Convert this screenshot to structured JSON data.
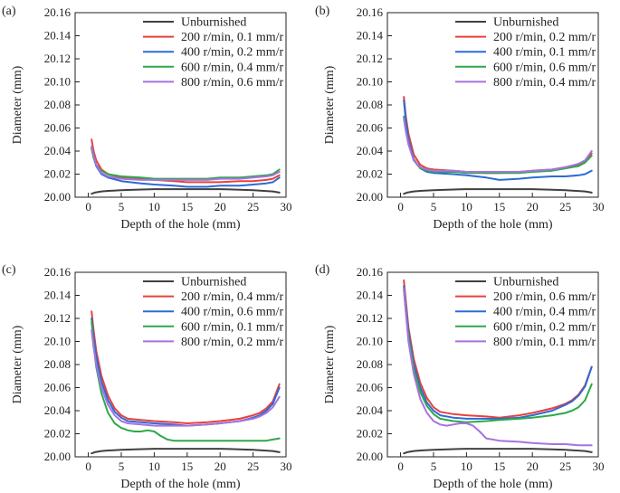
{
  "chart_data": [
    {
      "panel_label": "(a)",
      "type": "line",
      "xlabel": "Depth of the hole (mm)",
      "ylabel": "Diameter (mm)",
      "xlim": [
        -2,
        30
      ],
      "ylim": [
        20.0,
        20.16
      ],
      "xticks": [
        "0",
        "5",
        "10",
        "15",
        "20",
        "25",
        "30"
      ],
      "yticks": [
        "20.00",
        "20.02",
        "20.04",
        "20.06",
        "20.08",
        "20.10",
        "20.12",
        "20.14",
        "20.16"
      ],
      "legend_position": "top-right",
      "series": [
        {
          "name": "Unburnished",
          "color": "#404040",
          "x": [
            0.5,
            1,
            2,
            3,
            5,
            7,
            10,
            13,
            15,
            18,
            20,
            23,
            25,
            28,
            29
          ],
          "y": [
            20.003,
            20.004,
            20.005,
            20.0055,
            20.006,
            20.0065,
            20.007,
            20.007,
            20.007,
            20.007,
            20.007,
            20.0065,
            20.006,
            20.005,
            20.004
          ]
        },
        {
          "name": "200 r/min, 0.1 mm/r",
          "color": "#e8413a",
          "x": [
            0.5,
            0.8,
            1.2,
            2,
            3,
            5,
            8,
            10,
            13,
            15,
            18,
            20,
            23,
            25,
            27,
            28,
            29
          ],
          "y": [
            20.05,
            20.04,
            20.032,
            20.024,
            20.02,
            20.017,
            20.016,
            20.015,
            20.014,
            20.013,
            20.013,
            20.013,
            20.014,
            20.014,
            20.015,
            20.016,
            20.019
          ]
        },
        {
          "name": "400 r/min, 0.2 mm/r",
          "color": "#2b6bd6",
          "x": [
            0.5,
            0.8,
            1.2,
            2,
            3,
            5,
            8,
            10,
            13,
            15,
            18,
            20,
            23,
            25,
            27,
            28,
            29
          ],
          "y": [
            20.043,
            20.035,
            20.027,
            20.02,
            20.017,
            20.014,
            20.012,
            20.011,
            20.01,
            20.009,
            20.009,
            20.01,
            20.01,
            20.011,
            20.012,
            20.013,
            20.017
          ]
        },
        {
          "name": "600 r/min, 0.4 mm/r",
          "color": "#2ea84a",
          "x": [
            0.5,
            0.8,
            1.2,
            2,
            3,
            5,
            8,
            10,
            13,
            15,
            18,
            20,
            23,
            25,
            27,
            28,
            29
          ],
          "y": [
            20.042,
            20.034,
            20.028,
            20.023,
            20.02,
            20.018,
            20.017,
            20.016,
            20.016,
            20.016,
            20.016,
            20.017,
            20.017,
            20.018,
            20.019,
            20.02,
            20.024
          ]
        },
        {
          "name": "800 r/min, 0.6 mm/r",
          "color": "#a772e0",
          "x": [
            0.5,
            0.8,
            1.2,
            2,
            3,
            5,
            8,
            10,
            13,
            15,
            18,
            20,
            23,
            25,
            27,
            28,
            29
          ],
          "y": [
            20.044,
            20.036,
            20.028,
            20.021,
            20.018,
            20.016,
            20.015,
            20.015,
            20.015,
            20.015,
            20.015,
            20.016,
            20.016,
            20.017,
            20.018,
            20.019,
            20.022
          ]
        }
      ]
    },
    {
      "panel_label": "(b)",
      "type": "line",
      "xlabel": "Depth of the hole (mm)",
      "ylabel": "Diameter (mm)",
      "xlim": [
        -2,
        30
      ],
      "ylim": [
        20.0,
        20.16
      ],
      "xticks": [
        "0",
        "5",
        "10",
        "15",
        "20",
        "25",
        "30"
      ],
      "yticks": [
        "20.00",
        "20.02",
        "20.04",
        "20.06",
        "20.08",
        "20.10",
        "20.12",
        "20.14",
        "20.16"
      ],
      "legend_position": "top-right",
      "series": [
        {
          "name": "Unburnished",
          "color": "#404040",
          "x": [
            0.5,
            1,
            2,
            3,
            5,
            7,
            10,
            13,
            15,
            18,
            20,
            23,
            25,
            28,
            29
          ],
          "y": [
            20.003,
            20.004,
            20.005,
            20.0055,
            20.006,
            20.0065,
            20.007,
            20.007,
            20.007,
            20.007,
            20.007,
            20.0065,
            20.006,
            20.005,
            20.004
          ]
        },
        {
          "name": "200 r/min, 0.2 mm/r",
          "color": "#e8413a",
          "x": [
            0.5,
            0.8,
            1.2,
            2,
            3,
            4,
            5,
            8,
            10,
            13,
            15,
            18,
            20,
            23,
            25,
            27,
            28,
            29
          ],
          "y": [
            20.087,
            20.07,
            20.055,
            20.037,
            20.028,
            20.025,
            20.024,
            20.023,
            20.022,
            20.021,
            20.021,
            20.022,
            20.023,
            20.024,
            20.026,
            20.028,
            20.031,
            20.038
          ]
        },
        {
          "name": "400 r/min, 0.1 mm/r",
          "color": "#2b6bd6",
          "x": [
            0.5,
            0.8,
            1.2,
            2,
            3,
            4,
            5,
            8,
            10,
            13,
            15,
            18,
            20,
            23,
            25,
            27,
            28,
            29
          ],
          "y": [
            20.084,
            20.066,
            20.05,
            20.033,
            20.025,
            20.022,
            20.021,
            20.02,
            20.019,
            20.017,
            20.015,
            20.016,
            20.017,
            20.018,
            20.018,
            20.019,
            20.02,
            20.023
          ]
        },
        {
          "name": "600 r/min, 0.6 mm/r",
          "color": "#2ea84a",
          "x": [
            0.5,
            0.8,
            1.2,
            2,
            3,
            4,
            5,
            8,
            10,
            13,
            15,
            18,
            20,
            23,
            25,
            27,
            28,
            29
          ],
          "y": [
            20.07,
            20.058,
            20.046,
            20.032,
            20.025,
            20.023,
            20.022,
            20.022,
            20.021,
            20.021,
            20.021,
            20.021,
            20.022,
            20.023,
            20.025,
            20.027,
            20.03,
            20.036
          ]
        },
        {
          "name": "800 r/min, 0.4 mm/r",
          "color": "#a772e0",
          "x": [
            0.5,
            0.8,
            1.2,
            2,
            3,
            4,
            5,
            8,
            10,
            13,
            15,
            18,
            20,
            23,
            25,
            27,
            28,
            29
          ],
          "y": [
            20.068,
            20.057,
            20.046,
            20.032,
            20.026,
            20.024,
            20.023,
            20.023,
            20.022,
            20.022,
            20.022,
            20.022,
            20.023,
            20.024,
            20.026,
            20.029,
            20.032,
            20.04
          ]
        }
      ]
    },
    {
      "panel_label": "(c)",
      "type": "line",
      "xlabel": "Depth of the hole (mm)",
      "ylabel": "Diameter (mm)",
      "xlim": [
        -2,
        30
      ],
      "ylim": [
        20.0,
        20.16
      ],
      "xticks": [
        "0",
        "5",
        "10",
        "15",
        "20",
        "25",
        "30"
      ],
      "yticks": [
        "20.00",
        "20.02",
        "20.04",
        "20.06",
        "20.08",
        "20.10",
        "20.12",
        "20.14",
        "20.16"
      ],
      "legend_position": "top-right",
      "series": [
        {
          "name": "Unburnished",
          "color": "#404040",
          "x": [
            0.5,
            1,
            2,
            3,
            5,
            7,
            10,
            13,
            15,
            18,
            20,
            23,
            25,
            28,
            29
          ],
          "y": [
            20.003,
            20.004,
            20.005,
            20.0055,
            20.006,
            20.0065,
            20.007,
            20.007,
            20.007,
            20.007,
            20.007,
            20.0065,
            20.006,
            20.005,
            20.004
          ]
        },
        {
          "name": "200 r/min, 0.4 mm/r",
          "color": "#e8413a",
          "x": [
            0.5,
            0.8,
            1.2,
            2,
            3,
            4,
            5,
            6,
            8,
            10,
            13,
            15,
            18,
            20,
            23,
            25,
            26,
            27,
            28,
            29
          ],
          "y": [
            20.126,
            20.11,
            20.092,
            20.07,
            20.053,
            20.042,
            20.036,
            20.033,
            20.032,
            20.031,
            20.03,
            20.029,
            20.03,
            20.031,
            20.033,
            20.036,
            20.038,
            20.042,
            20.048,
            20.063
          ]
        },
        {
          "name": "400 r/min, 0.6 mm/r",
          "color": "#2b6bd6",
          "x": [
            0.5,
            0.8,
            1.2,
            2,
            3,
            4,
            5,
            6,
            8,
            10,
            13,
            15,
            18,
            20,
            23,
            25,
            26,
            27,
            28,
            29
          ],
          "y": [
            20.12,
            20.104,
            20.087,
            20.065,
            20.049,
            20.039,
            20.034,
            20.031,
            20.03,
            20.029,
            20.028,
            20.027,
            20.028,
            20.029,
            20.031,
            20.034,
            20.036,
            20.04,
            20.046,
            20.06
          ]
        },
        {
          "name": "600 r/min, 0.1 mm/r",
          "color": "#2ea84a",
          "x": [
            0.5,
            0.8,
            1.2,
            2,
            3,
            4,
            5,
            6,
            7,
            8,
            9,
            10,
            11,
            12,
            13,
            15,
            18,
            20,
            23,
            25,
            27,
            28,
            29
          ],
          "y": [
            20.117,
            20.098,
            20.078,
            20.055,
            20.038,
            20.029,
            20.025,
            20.023,
            20.022,
            20.022,
            20.023,
            20.022,
            20.018,
            20.015,
            20.014,
            20.014,
            20.014,
            20.014,
            20.014,
            20.014,
            20.014,
            20.015,
            20.016
          ]
        },
        {
          "name": "800 r/min, 0.2 mm/r",
          "color": "#a772e0",
          "x": [
            0.5,
            0.8,
            1.2,
            2,
            3,
            4,
            5,
            6,
            8,
            10,
            13,
            15,
            18,
            20,
            23,
            25,
            26,
            27,
            28,
            29
          ],
          "y": [
            20.11,
            20.095,
            20.08,
            20.06,
            20.045,
            20.036,
            20.031,
            20.029,
            20.028,
            20.027,
            20.027,
            20.027,
            20.028,
            20.029,
            20.031,
            20.033,
            20.035,
            20.038,
            20.043,
            20.052
          ]
        }
      ]
    },
    {
      "panel_label": "(d)",
      "type": "line",
      "xlabel": "Depth of the hole (mm)",
      "ylabel": "Diameter (mm)",
      "xlim": [
        -2,
        30
      ],
      "ylim": [
        20.0,
        20.16
      ],
      "xticks": [
        "0",
        "5",
        "10",
        "15",
        "20",
        "25",
        "30"
      ],
      "yticks": [
        "20.00",
        "20.02",
        "20.04",
        "20.06",
        "20.08",
        "20.10",
        "20.12",
        "20.14",
        "20.16"
      ],
      "legend_position": "top-right",
      "series": [
        {
          "name": "Unburnished",
          "color": "#404040",
          "x": [
            0.5,
            1,
            2,
            3,
            5,
            7,
            10,
            13,
            15,
            18,
            20,
            23,
            25,
            28,
            29
          ],
          "y": [
            20.003,
            20.004,
            20.005,
            20.0055,
            20.006,
            20.0065,
            20.007,
            20.007,
            20.007,
            20.007,
            20.007,
            20.0065,
            20.006,
            20.005,
            20.004
          ]
        },
        {
          "name": "200 r/min, 0.6 mm/r",
          "color": "#e8413a",
          "x": [
            0.5,
            0.8,
            1.2,
            2,
            3,
            4,
            5,
            6,
            8,
            10,
            13,
            15,
            18,
            20,
            23,
            25,
            26,
            27,
            28,
            29
          ],
          "y": [
            20.153,
            20.135,
            20.112,
            20.085,
            20.064,
            20.051,
            20.043,
            20.039,
            20.037,
            20.036,
            20.035,
            20.034,
            20.036,
            20.038,
            20.042,
            20.046,
            20.049,
            20.054,
            20.062,
            20.078
          ]
        },
        {
          "name": "400 r/min, 0.4 mm/r",
          "color": "#2b6bd6",
          "x": [
            0.5,
            0.8,
            1.2,
            2,
            3,
            4,
            5,
            6,
            8,
            10,
            13,
            15,
            18,
            20,
            23,
            25,
            26,
            27,
            28,
            29
          ],
          "y": [
            20.148,
            20.13,
            20.108,
            20.08,
            20.06,
            20.047,
            20.04,
            20.036,
            20.034,
            20.033,
            20.033,
            20.033,
            20.034,
            20.036,
            20.04,
            20.045,
            20.048,
            20.053,
            20.061,
            20.078
          ]
        },
        {
          "name": "600 r/min, 0.2 mm/r",
          "color": "#2ea84a",
          "x": [
            0.5,
            0.8,
            1.2,
            2,
            3,
            4,
            5,
            6,
            8,
            10,
            13,
            15,
            18,
            20,
            23,
            25,
            26,
            27,
            28,
            29
          ],
          "y": [
            20.145,
            20.126,
            20.104,
            20.076,
            20.056,
            20.044,
            20.037,
            20.033,
            20.031,
            20.03,
            20.031,
            20.032,
            20.033,
            20.034,
            20.036,
            20.038,
            20.04,
            20.043,
            20.049,
            20.063
          ]
        },
        {
          "name": "800 r/min, 0.1 mm/r",
          "color": "#a772e0",
          "x": [
            0.5,
            0.8,
            1.2,
            2,
            3,
            4,
            5,
            6,
            7,
            8,
            9,
            10,
            11,
            12,
            13,
            15,
            18,
            20,
            23,
            25,
            27,
            28,
            29
          ],
          "y": [
            20.146,
            20.125,
            20.1,
            20.072,
            20.05,
            20.038,
            20.031,
            20.028,
            20.027,
            20.028,
            20.029,
            20.029,
            20.027,
            20.022,
            20.016,
            20.014,
            20.013,
            20.012,
            20.011,
            20.011,
            20.01,
            20.01,
            20.01
          ]
        }
      ]
    }
  ]
}
